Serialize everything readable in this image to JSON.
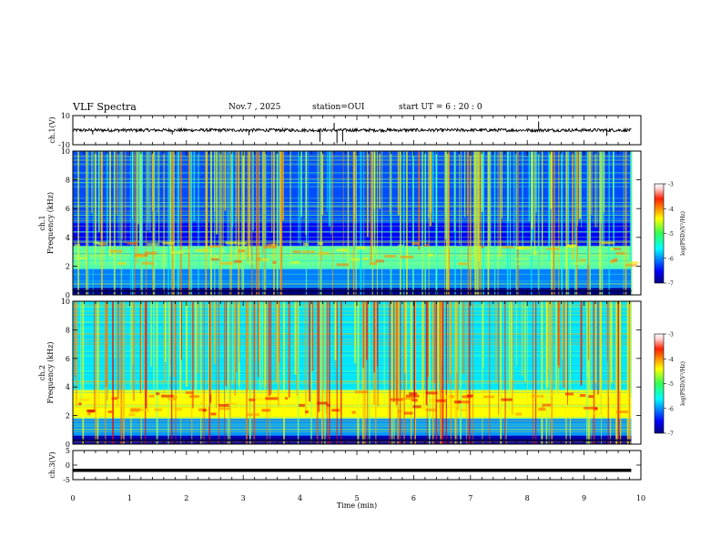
{
  "header": {
    "title": "VLF Spectra",
    "date": "Nov.7 , 2025",
    "station": "station=OUI",
    "start": "start UT = 6 : 20 : 0"
  },
  "chart_data": [
    {
      "type": "line",
      "name": "ch1-waveform",
      "ylabel": "ch.1(V)",
      "ylim": [
        -10,
        10
      ],
      "yticks": [
        "10",
        "-10"
      ],
      "xlim": [
        0,
        10
      ],
      "trace_level": 0,
      "spikes": [
        {
          "x": 0.35,
          "y": -3
        },
        {
          "x": 1.75,
          "y": -3
        },
        {
          "x": 3.1,
          "y": -3.5
        },
        {
          "x": 4.35,
          "y": -8
        },
        {
          "x": 4.6,
          "y": 5
        },
        {
          "x": 4.65,
          "y": -9
        },
        {
          "x": 4.75,
          "y": -8
        },
        {
          "x": 8.2,
          "y": 6
        },
        {
          "x": 9.4,
          "y": -4
        }
      ]
    },
    {
      "type": "heatmap",
      "name": "ch1-spectrogram",
      "ylabel": "ch.1 Frequency (kHz)",
      "ylim": [
        0,
        10
      ],
      "yticks": [
        "10",
        "8",
        "6",
        "4",
        "2",
        "0"
      ],
      "xlim": [
        0,
        10
      ],
      "data_xmax": 9.83,
      "colorbar": {
        "label": "log(PSD)(V²/Hz)",
        "range": [
          -7,
          -3
        ],
        "ticks": [
          "-3",
          "-4",
          "-5",
          "-6",
          "-7"
        ]
      },
      "bands": [
        {
          "f_low": 0,
          "f_high": 0.5,
          "level": -6.9
        },
        {
          "f_low": 0.5,
          "f_high": 1.8,
          "level": -6.0
        },
        {
          "f_low": 1.8,
          "f_high": 3.4,
          "level": -5.1
        },
        {
          "f_low": 3.4,
          "f_high": 5.0,
          "level": -6.5
        },
        {
          "f_low": 5.0,
          "f_high": 10,
          "level": -6.2
        }
      ]
    },
    {
      "type": "heatmap",
      "name": "ch2-spectrogram",
      "ylabel": "ch.2 Frequency (kHz)",
      "ylim": [
        0,
        10
      ],
      "yticks": [
        "10",
        "8",
        "6",
        "4",
        "2",
        "0"
      ],
      "xlim": [
        0,
        10
      ],
      "data_xmax": 9.83,
      "colorbar": {
        "label": "log(PSD)(V²/Hz)",
        "range": [
          -7,
          -3
        ],
        "ticks": [
          "-3",
          "-4",
          "-5",
          "-6",
          "-7"
        ]
      },
      "bands": [
        {
          "f_low": 0,
          "f_high": 0.6,
          "level": -6.8
        },
        {
          "f_low": 0.6,
          "f_high": 1.8,
          "level": -5.9
        },
        {
          "f_low": 1.8,
          "f_high": 3.8,
          "level": -4.5
        },
        {
          "f_low": 3.8,
          "f_high": 10,
          "level": -5.6
        }
      ]
    },
    {
      "type": "line",
      "name": "ch3-waveform",
      "ylabel": "ch.3(V)",
      "ylim": [
        -5,
        5
      ],
      "yticks": [
        "5",
        "0",
        "-5"
      ],
      "xlim": [
        0,
        10
      ],
      "trace_level": -1.8
    }
  ],
  "xaxis": {
    "label": "Time (min)",
    "ticks": [
      "0",
      "1",
      "2",
      "3",
      "4",
      "5",
      "6",
      "7",
      "8",
      "9",
      "10"
    ]
  }
}
